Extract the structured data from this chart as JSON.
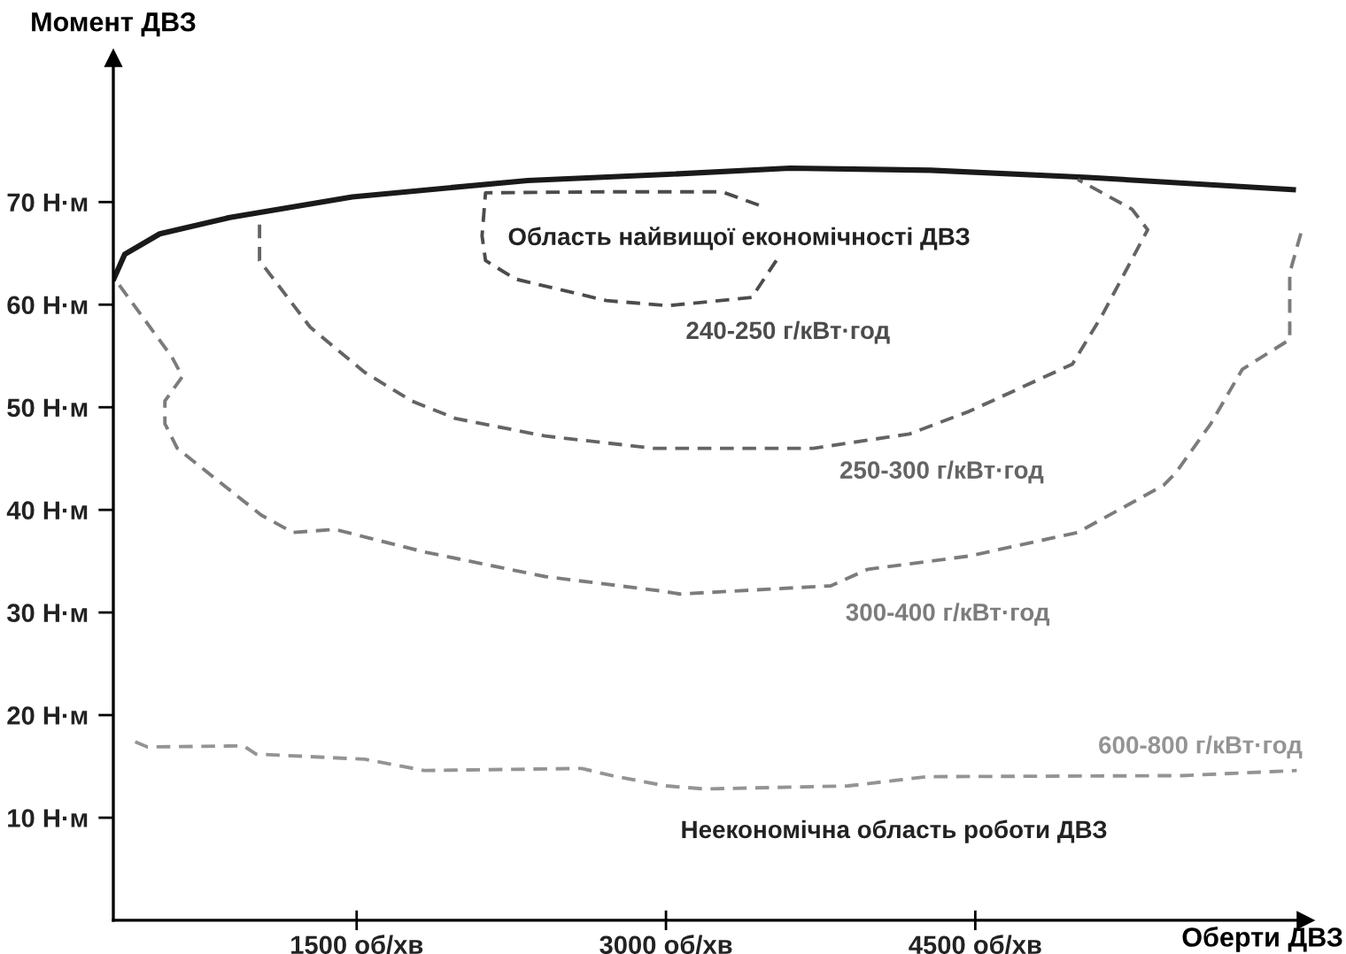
{
  "chart_data": {
    "type": "line",
    "xlabel": "Оберти ДВЗ",
    "ylabel": "Момент ДВЗ",
    "xlim": [
      320,
      6100
    ],
    "ylim": [
      0,
      84
    ],
    "xticks": [
      {
        "value": 1500,
        "label": "1500 об/хв"
      },
      {
        "value": 3000,
        "label": "3000 об/хв"
      },
      {
        "value": 4500,
        "label": "4500 об/хв"
      }
    ],
    "yticks": [
      {
        "value": 10,
        "label": "10 Н·м"
      },
      {
        "value": 20,
        "label": "20 Н·м"
      },
      {
        "value": 30,
        "label": "30 Н·м"
      },
      {
        "value": 40,
        "label": "40 Н·м"
      },
      {
        "value": 50,
        "label": "50 Н·м"
      },
      {
        "value": 60,
        "label": "60 Н·м"
      },
      {
        "value": 70,
        "label": "70 Н·м"
      }
    ],
    "grid": false,
    "marker": "none",
    "series": [
      {
        "color": "#1a1a1a",
        "line_style": "solid",
        "x": [
          324,
          375,
          545,
          885,
          1479,
          2329,
          3008,
          3603,
          4283,
          5048,
          6042
        ],
        "values": [
          62.6,
          64.9,
          66.9,
          68.5,
          70.5,
          72.1,
          72.7,
          73.3,
          73.1,
          72.4,
          71.2
        ]
      },
      {
        "name": "240-250 г/кВт·год",
        "color": "#4c4c4c",
        "line_style": "dashed",
        "x": [
          3450,
          3272,
          3008,
          2711,
          2125,
          2108,
          2125,
          2269,
          2711,
          3008,
          3416,
          3535
        ],
        "values": [
          69.7,
          71.0,
          71.0,
          71.0,
          70.9,
          66.7,
          64.3,
          62.5,
          60.4,
          59.9,
          60.7,
          64.3
        ]
      },
      {
        "name": "250-300 г/кВт·год",
        "color": "#646464",
        "line_style": "dashed",
        "x": [
          1029,
          1029,
          1275,
          1539,
          1768,
          1980,
          2414,
          2941,
          3714,
          4181,
          4470,
          4971,
          5116,
          5336,
          5260,
          4997
        ],
        "values": [
          67.8,
          64.3,
          57.8,
          53.4,
          50.6,
          48.9,
          47.2,
          46.0,
          46.0,
          47.4,
          49.6,
          54.2,
          59.0,
          67.3,
          69.3,
          72.2
        ]
      },
      {
        "name": "300-400 г/кВт·год",
        "color": "#7c7c7c",
        "line_style": "dashed",
        "x": [
          349,
          604,
          655,
          570,
          570,
          630,
          1037,
          1190,
          1394,
          1828,
          2414,
          2975,
          3068,
          3799,
          3977,
          4470,
          4997,
          5413,
          5472,
          5642,
          5795,
          6025,
          6025,
          6084
        ],
        "values": [
          61.9,
          54.9,
          53.0,
          50.6,
          48.4,
          46.0,
          39.5,
          37.8,
          38.1,
          35.9,
          33.5,
          32.1,
          31.8,
          32.6,
          34.2,
          35.5,
          37.8,
          42.4,
          43.6,
          48.4,
          53.7,
          56.6,
          63.1,
          67.3
        ]
      },
      {
        "name": "600-800 г/кВт·год",
        "color": "#949494",
        "line_style": "dashed",
        "x": [
          426,
          485,
          952,
          1012,
          1539,
          1828,
          2592,
          2737,
          3000,
          3187,
          3884,
          4266,
          5498,
          6059
        ],
        "values": [
          17.4,
          16.9,
          17.0,
          16.2,
          15.7,
          14.6,
          14.8,
          14.1,
          13.1,
          12.8,
          13.1,
          14.0,
          14.1,
          14.6
        ]
      }
    ],
    "annotations": [
      "Область найвищої економічності ДВЗ",
      "Неекономічна область роботи ДВЗ"
    ]
  }
}
